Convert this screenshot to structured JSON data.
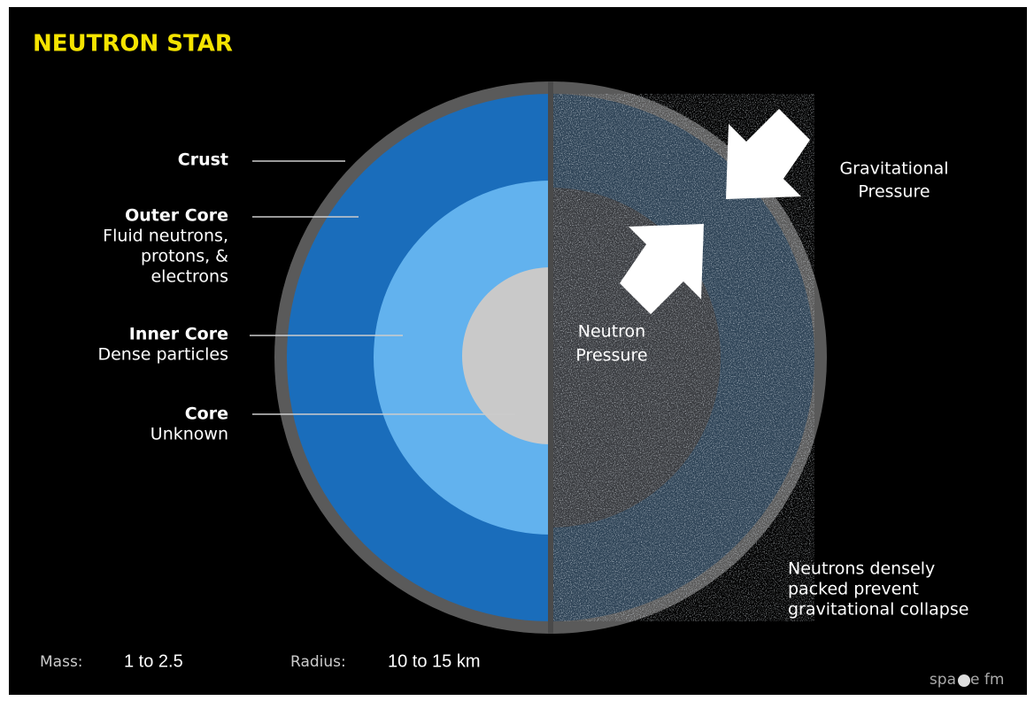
{
  "header": {
    "title": "NEUTRON STAR"
  },
  "layers": [
    {
      "name": "Crust"
    },
    {
      "name": "Outer Core",
      "description": [
        "Fluid neutrons,",
        "protons, &",
        "electrons"
      ]
    },
    {
      "name": "Inner Core",
      "description": [
        "Dense particles"
      ]
    },
    {
      "name": "Core",
      "description": [
        "Unknown"
      ]
    }
  ],
  "forces": {
    "gravitational": [
      "Gravitational",
      "Pressure"
    ],
    "neutron": [
      "Neutron",
      "Pressure"
    ]
  },
  "note": [
    "Neutrons densely",
    "packed prevent",
    "gravitational collapse"
  ],
  "stats": {
    "mass_label": "Mass:",
    "mass": "1 to 2.5",
    "radius_label": "Radius:",
    "radius": "10 to 15 km"
  },
  "logo": [
    "spa",
    "e fm"
  ]
}
